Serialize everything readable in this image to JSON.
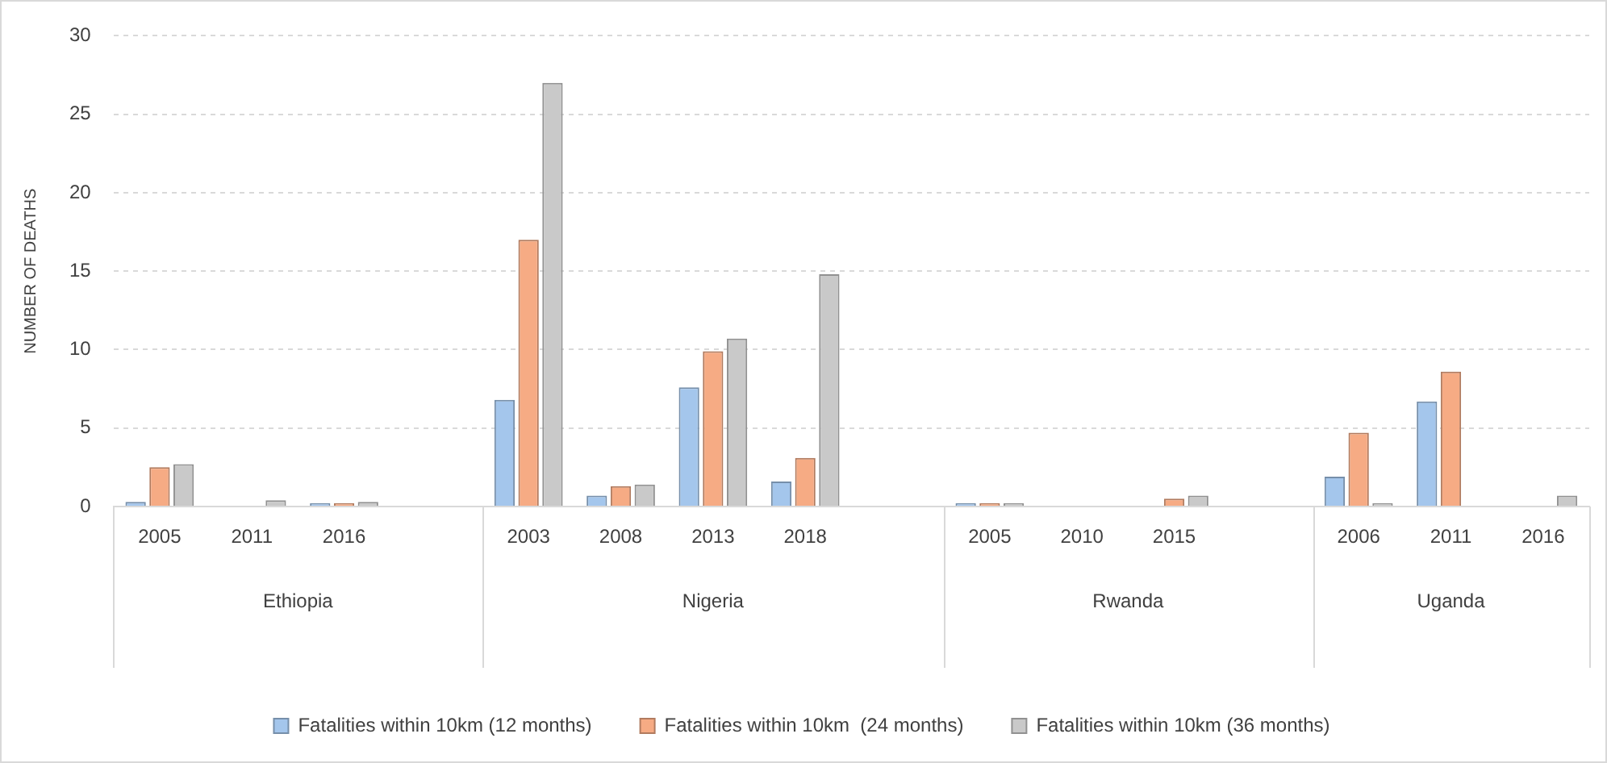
{
  "chart_data": {
    "type": "bar",
    "ylabel": "NUMBER OF DEATHS",
    "categories": [
      "2005",
      "2011",
      "2016",
      null,
      "2003",
      "2008",
      "2013",
      "2018",
      null,
      "2005",
      "2010",
      "2015",
      null,
      "2006",
      "2011",
      "2016"
    ],
    "annotations": [
      "Ethiopia",
      "Nigeria",
      "Rwanda",
      "Uganda"
    ],
    "series": [
      {
        "name": "Fatalities within 10km (12 months)",
        "color": "#a4c6ec",
        "values": [
          0.3,
          0,
          0.2,
          null,
          6.8,
          0.7,
          7.6,
          1.6,
          null,
          0.2,
          0,
          0,
          null,
          1.9,
          6.7,
          0
        ]
      },
      {
        "name": "Fatalities within 10km  (24 months)",
        "color": "#f6ab84",
        "values": [
          2.5,
          0,
          0.2,
          null,
          17,
          1.3,
          9.9,
          3.1,
          null,
          0.2,
          0,
          0.5,
          null,
          4.7,
          8.6,
          0
        ]
      },
      {
        "name": "Fatalities within 10km (36 months)",
        "color": "#c9c9c9",
        "values": [
          2.7,
          0.4,
          0.3,
          null,
          27,
          1.4,
          10.7,
          14.8,
          null,
          0.2,
          0,
          0.7,
          null,
          0.2,
          0,
          0.7
        ]
      }
    ],
    "ylim": [
      0,
      30
    ],
    "yticks": [
      0,
      5,
      10,
      15,
      20,
      25,
      30
    ],
    "grid": "y",
    "legend": "bottom"
  }
}
